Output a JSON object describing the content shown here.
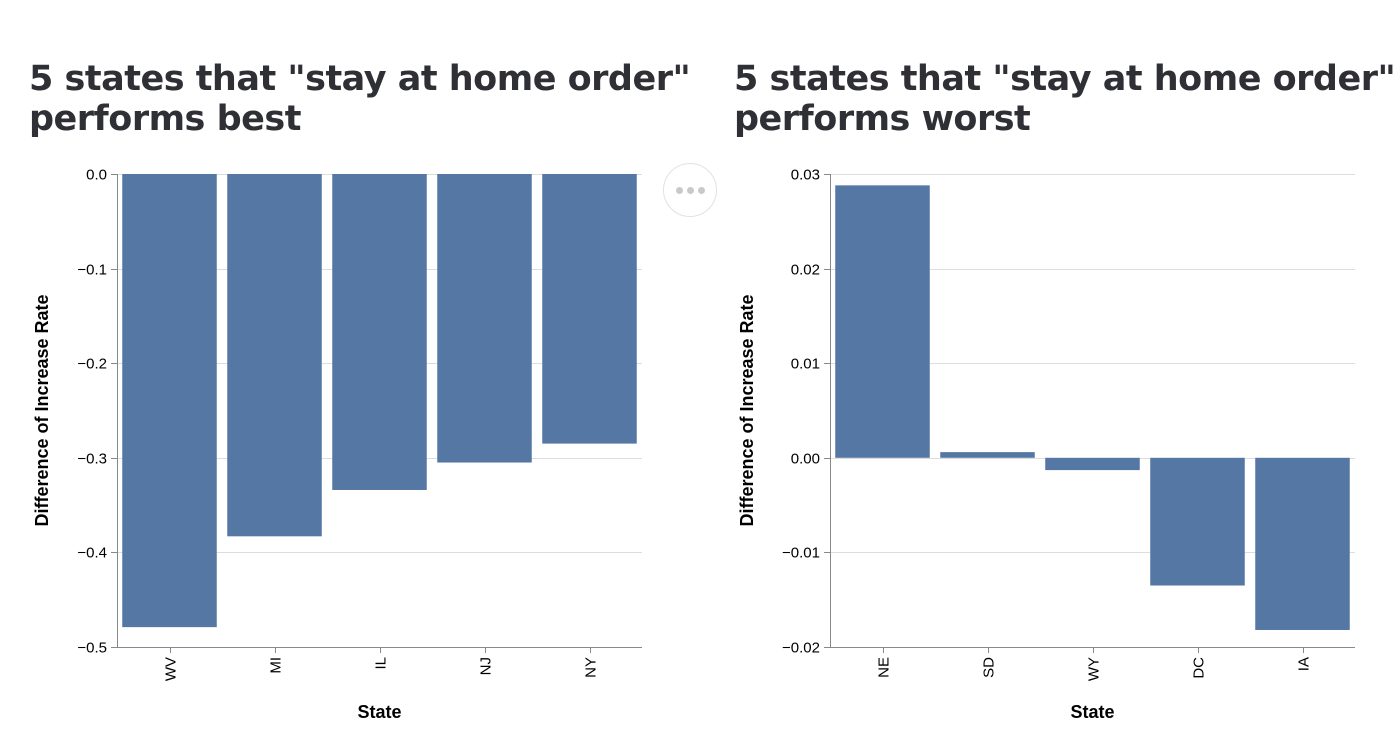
{
  "chart_data": [
    {
      "type": "bar",
      "title_lines": [
        "5 states that \"stay at home order\"",
        "performs best"
      ],
      "xlabel": "State",
      "ylabel": "Difference of Increase Rate",
      "categories": [
        "WV",
        "MI",
        "IL",
        "NJ",
        "NY"
      ],
      "values": [
        -0.479,
        -0.383,
        -0.334,
        -0.305,
        -0.285
      ],
      "ylim": [
        -0.5,
        0.0
      ],
      "yticks": [
        0.0,
        -0.1,
        -0.2,
        -0.3,
        -0.4,
        -0.5
      ],
      "ytick_labels": [
        "0.0",
        "−0.1",
        "−0.2",
        "−0.3",
        "−0.4",
        "−0.5"
      ],
      "grid": true,
      "bar_color": "#5577a3"
    },
    {
      "type": "bar",
      "title_lines": [
        "5 states that \"stay at home order\"",
        "performs worst"
      ],
      "xlabel": "State",
      "ylabel": "Difference of Increase Rate",
      "categories": [
        "NE",
        "SD",
        "WY",
        "DC",
        "IA"
      ],
      "values": [
        0.0288,
        0.0006,
        -0.0013,
        -0.0135,
        -0.0182
      ],
      "ylim": [
        -0.02,
        0.03
      ],
      "yticks": [
        0.03,
        0.02,
        0.01,
        0.0,
        -0.01,
        -0.02
      ],
      "ytick_labels": [
        "0.03",
        "0.02",
        "0.01",
        "0.00",
        "−0.01",
        "−0.02"
      ],
      "grid": true,
      "bar_color": "#5577a3"
    }
  ],
  "menu": {
    "icon": "more-horizontal-icon"
  }
}
